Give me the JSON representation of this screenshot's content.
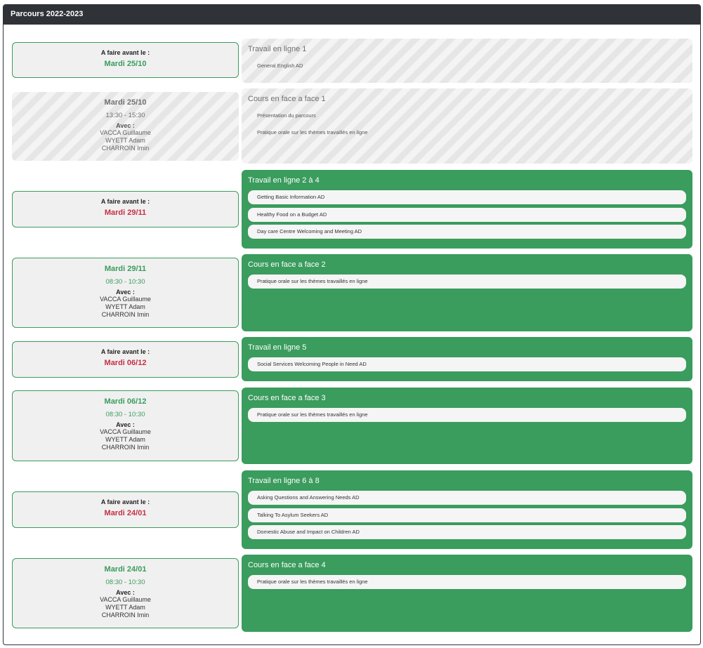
{
  "panel": {
    "title": "Parcours 2022-2023"
  },
  "labels": {
    "due": "A faire avant le :",
    "avec": "Avec :"
  },
  "rows": [
    {
      "due_date": "Mardi 25/10",
      "block": {
        "title": "Travail en ligne 1",
        "items": [
          "General English AD"
        ]
      }
    },
    {
      "session": {
        "date": "Mardi 25/10",
        "time": "13:30 - 15:30",
        "names": [
          "VACCA Guillaume",
          "WYETT Adam",
          "CHARROIN Imin"
        ]
      },
      "block": {
        "title": "Cours en face a face 1",
        "items": [
          "Présentation du parcours",
          "Pratique orale sur les thèmes travaillés en ligne"
        ]
      }
    },
    {
      "due_date": "Mardi 29/11",
      "block": {
        "title": "Travail en ligne 2 à 4",
        "items": [
          "Getting Basic Information AD",
          "Healthy Food on a Budget AD",
          "Day care Centre Welcoming and Meeting AD"
        ]
      }
    },
    {
      "session": {
        "date": "Mardi 29/11",
        "time": "08:30 - 10:30",
        "names": [
          "VACCA Guillaume",
          "WYETT Adam",
          "CHARROIN Imin"
        ]
      },
      "block": {
        "title": "Cours en face a face 2",
        "items": [
          "Pratique orale sur les thèmes travaillés en ligne"
        ]
      }
    },
    {
      "due_date": "Mardi 06/12",
      "block": {
        "title": "Travail en ligne 5",
        "items": [
          "Social Services Welcoming People in Need AD"
        ]
      }
    },
    {
      "session": {
        "date": "Mardi 06/12",
        "time": "08:30 - 10:30",
        "names": [
          "VACCA Guillaume",
          "WYETT Adam",
          "CHARROIN Imin"
        ]
      },
      "block": {
        "title": "Cours en face a face 3",
        "items": [
          "Pratique orale sur les thèmes travaillés en ligne"
        ]
      }
    },
    {
      "due_date": "Mardi 24/01",
      "block": {
        "title": "Travail en ligne 6 à 8",
        "items": [
          "Asking Questions and Answering Needs AD",
          "Talking To Asylum Seekers AD",
          "Domestic Abuse and Impact on Children AD"
        ]
      }
    },
    {
      "session": {
        "date": "Mardi 24/01",
        "time": "08:30 - 10:30",
        "names": [
          "VACCA Guillaume",
          "WYETT Adam",
          "CHARROIN Imin"
        ]
      },
      "block": {
        "title": "Cours en face a face 4",
        "items": [
          "Pratique orale sur les thèmes travaillés en ligne"
        ]
      }
    }
  ]
}
